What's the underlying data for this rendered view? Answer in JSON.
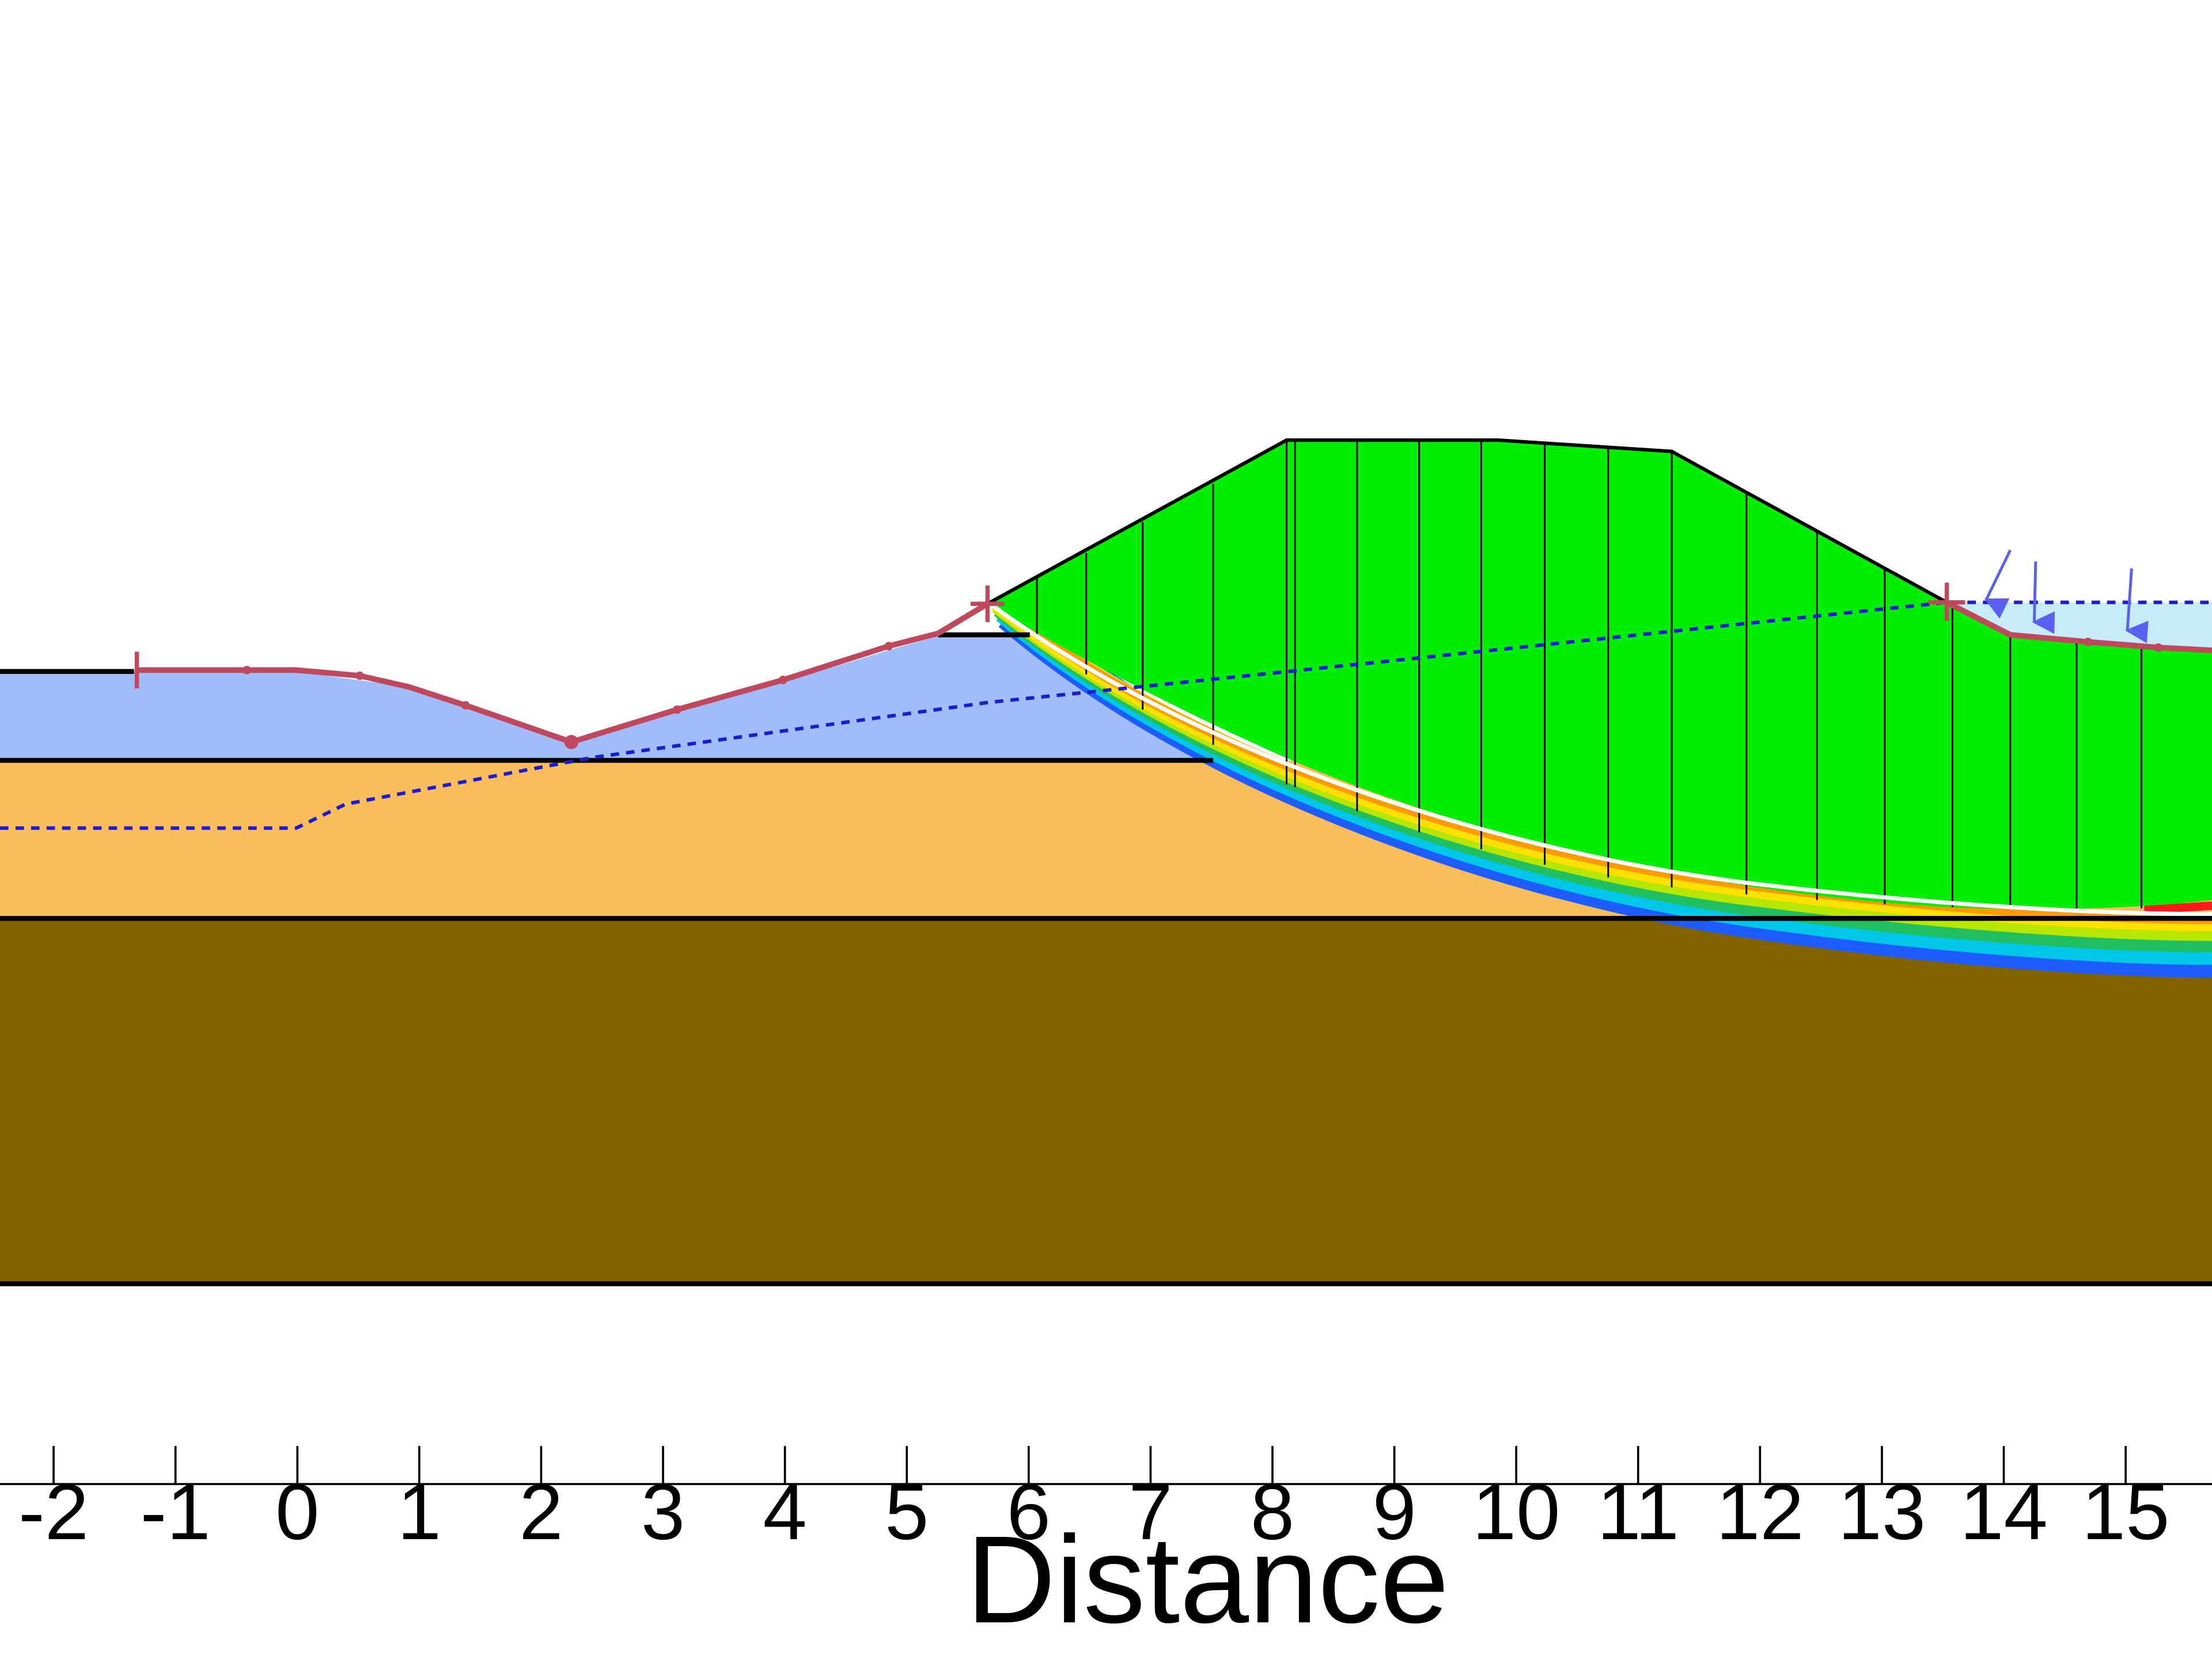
{
  "axis": {
    "title": "Distance",
    "ticks": [
      "-2",
      "-1",
      "0",
      "1",
      "2",
      "3",
      "4",
      "5",
      "6",
      "7",
      "8",
      "9",
      "10",
      "11",
      "12",
      "13",
      "14",
      "15"
    ]
  },
  "colors": {
    "background": "#ffffff",
    "bedrock_layer": "#806200",
    "sand_layer": "#fbbd5c",
    "clay_layer": "#a0bcfa",
    "slip_mass": "#00ee00",
    "ponded_water": "#c6ecf9",
    "slip_surface_line": "#ffffff",
    "search_limits": "#c0485c",
    "water_table": "#1b1bd0",
    "load_arrows": "#5a60f0",
    "boundary_lines": "#000000"
  },
  "icons": {
    "load_arrow": "arrow-down-icon",
    "search_limit_marker": "cross-marker-icon"
  }
}
